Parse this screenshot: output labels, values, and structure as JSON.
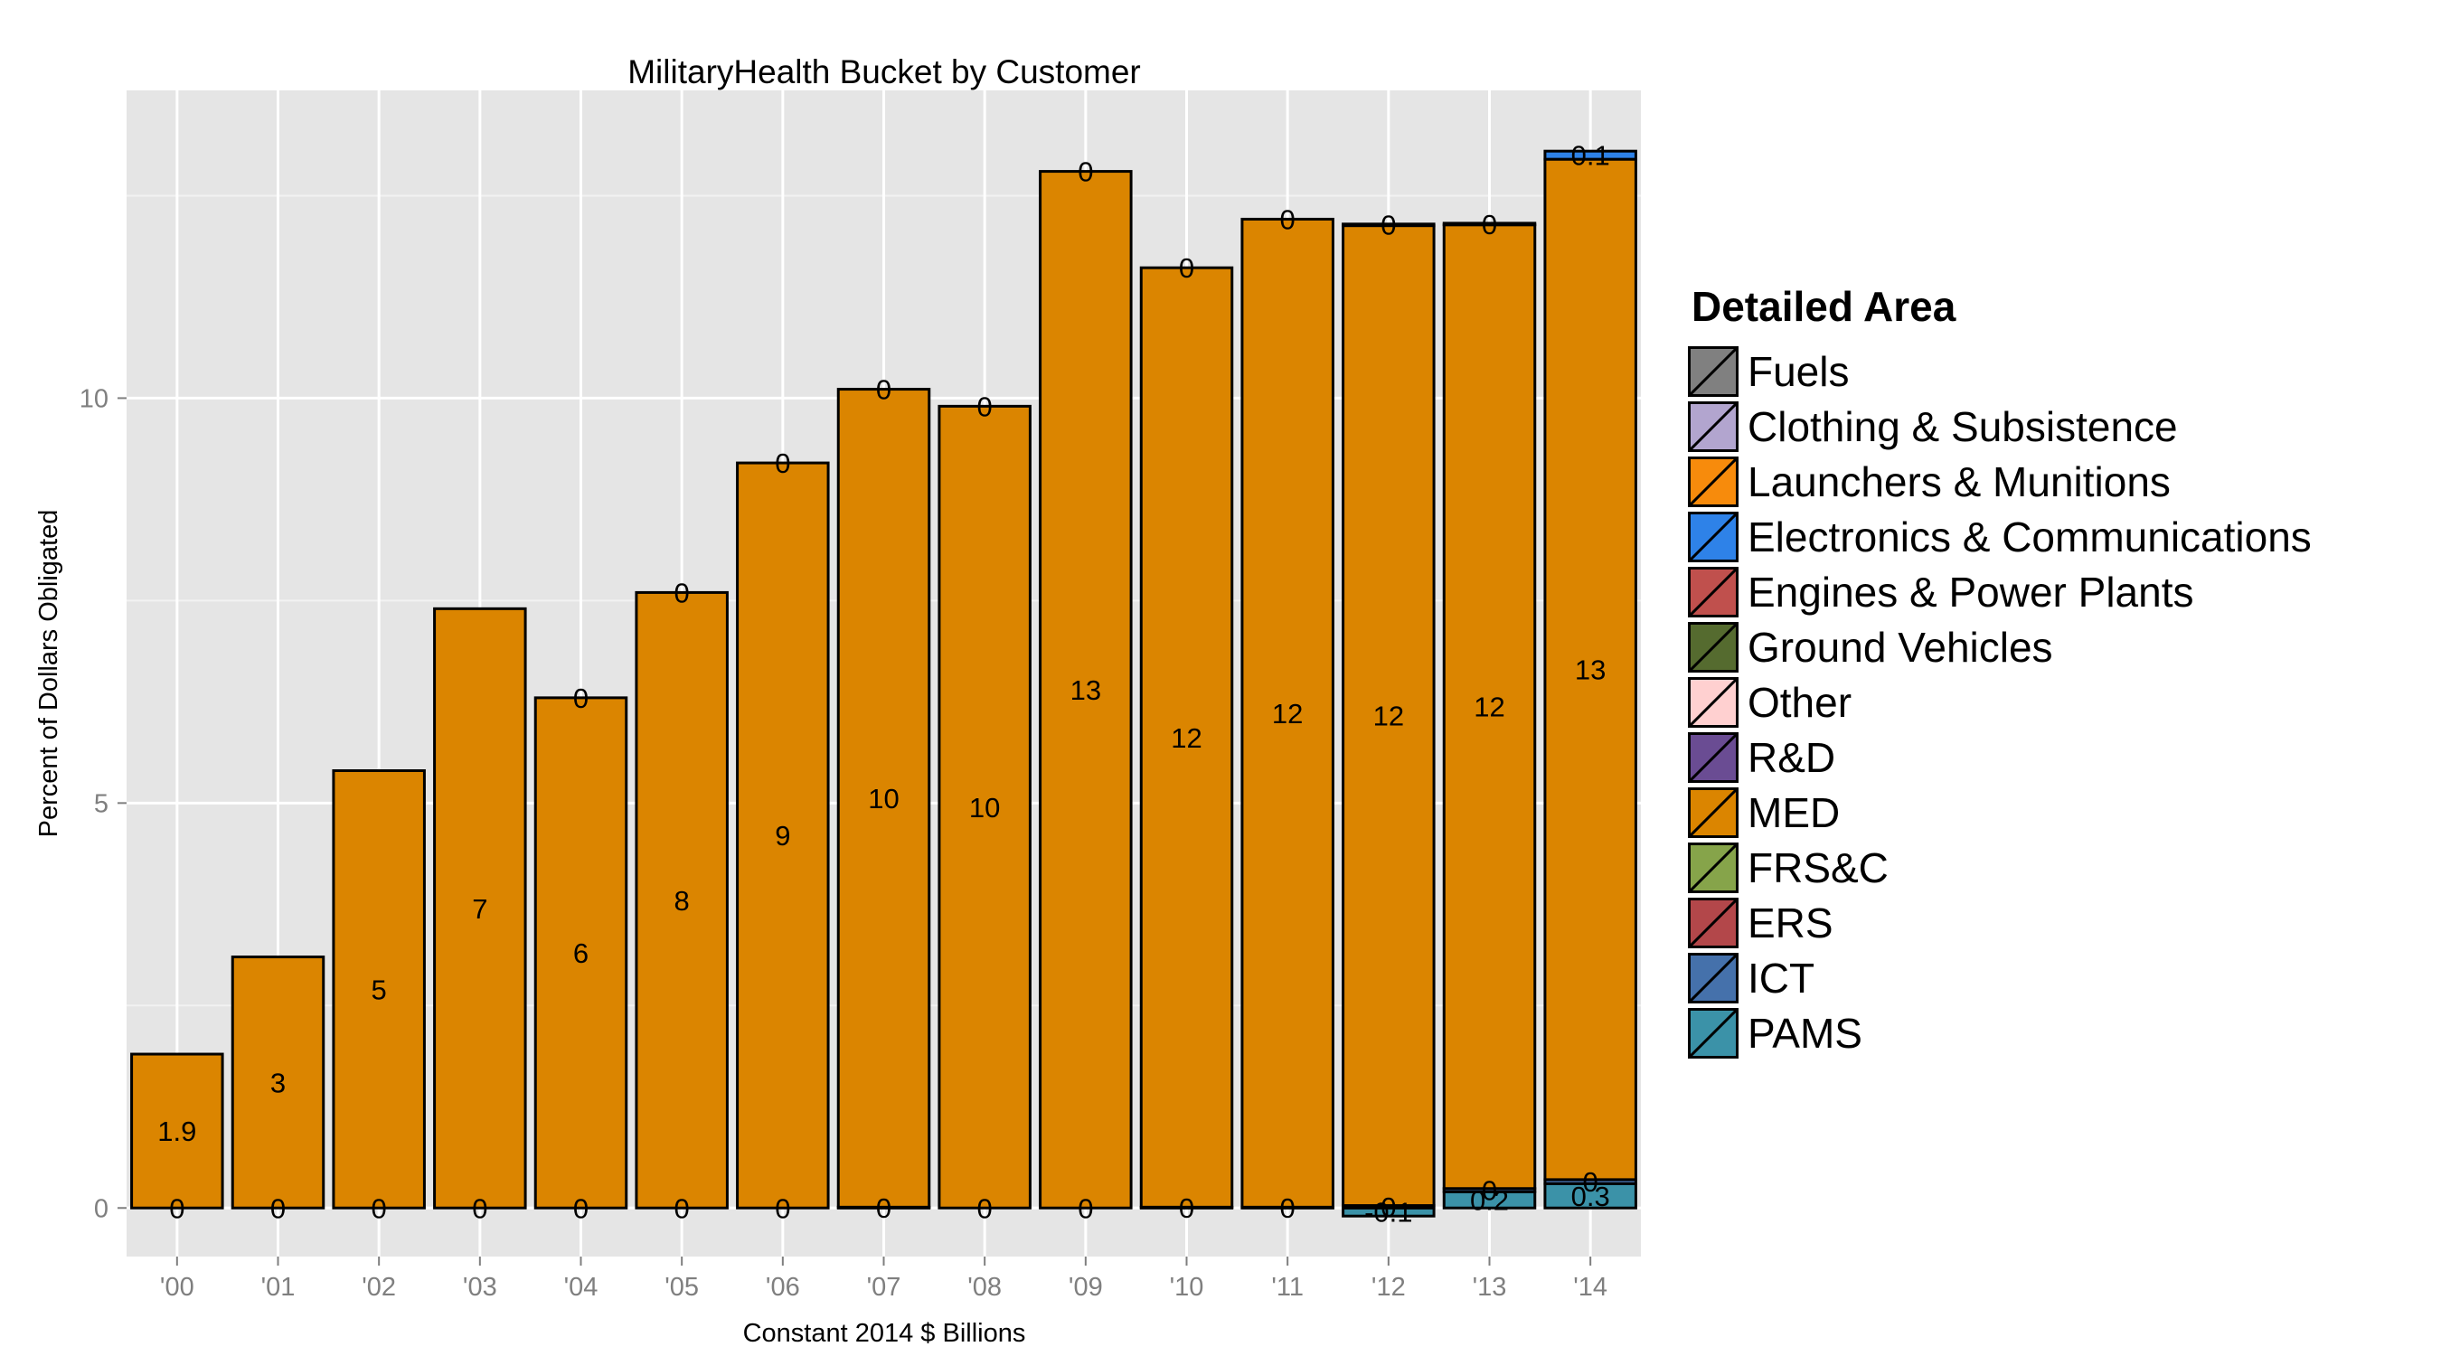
{
  "chart_data": {
    "type": "bar",
    "title": "MilitaryHealth Bucket by Customer",
    "xlabel": "Constant 2014 $ Billions",
    "ylabel": "Percent of Dollars Obligated",
    "ylim": [
      -0.6,
      13.8
    ],
    "yticks": [
      0,
      5,
      10
    ],
    "grid": true,
    "legend_position": "right",
    "categories": [
      "'00",
      "'01",
      "'02",
      "'03",
      "'04",
      "'05",
      "'06",
      "'07",
      "'08",
      "'09",
      "'10",
      "'11",
      "'12",
      "'13",
      "'14"
    ],
    "series": [
      {
        "name": "PAMS",
        "color": "#3B92A8",
        "values": [
          0,
          0,
          0,
          0,
          0,
          0,
          0,
          0.01,
          0,
          0,
          0.01,
          0.01,
          -0.1,
          0.2,
          0.3
        ],
        "labels": [
          "0",
          "0",
          "0",
          "0",
          "0",
          "0",
          "0",
          "0",
          "0",
          "0",
          "0",
          "0",
          "-0.1",
          "0.2",
          "0.3"
        ]
      },
      {
        "name": "ICT",
        "color": "#4571AB",
        "values": [
          0,
          0,
          0,
          0,
          0,
          0,
          0,
          0,
          0,
          0,
          0,
          0,
          0.03,
          0.04,
          0.05
        ],
        "labels": [
          "",
          "",
          "",
          "",
          "",
          "",
          "",
          "",
          "",
          "",
          "",
          "",
          "0",
          "0",
          "0"
        ]
      },
      {
        "name": "MED",
        "color": "#DB8500",
        "values": [
          1.9,
          3.1,
          5.4,
          7.4,
          6.3,
          7.6,
          9.2,
          10.1,
          9.9,
          12.8,
          11.6,
          12.2,
          12.1,
          11.9,
          12.6
        ],
        "labels": [
          "1.9",
          "3",
          "5",
          "7",
          "6",
          "8",
          "9",
          "10",
          "10",
          "13",
          "12",
          "12",
          "12",
          "12",
          "13"
        ]
      },
      {
        "name": "Electronics & Communications",
        "color": "#2E82E8",
        "values": [
          0,
          0,
          0,
          0,
          0,
          0,
          0,
          0,
          0,
          0,
          0,
          0,
          0.02,
          0.02,
          0.1
        ],
        "labels": [
          "",
          "",
          "",
          "",
          "0",
          "0",
          "0",
          "0",
          "0",
          "0",
          "0",
          "0",
          "0",
          "0",
          "0.1"
        ]
      }
    ],
    "legend": {
      "title": "Detailed Area",
      "items": [
        {
          "name": "Fuels",
          "color": "#808080"
        },
        {
          "name": "Clothing & Subsistence",
          "color": "#B2A5CF"
        },
        {
          "name": "Launchers & Munitions",
          "color": "#F78B0C"
        },
        {
          "name": "Electronics & Communications",
          "color": "#2E82E8"
        },
        {
          "name": "Engines & Power Plants",
          "color": "#C0504D"
        },
        {
          "name": "Ground Vehicles",
          "color": "#556B2F"
        },
        {
          "name": "Other",
          "color": "#FFD0D0"
        },
        {
          "name": "R&D",
          "color": "#6A4C93"
        },
        {
          "name": "MED",
          "color": "#DB8500"
        },
        {
          "name": "FRS&C",
          "color": "#86A44A"
        },
        {
          "name": "ERS",
          "color": "#B3474A"
        },
        {
          "name": "ICT",
          "color": "#4571AB"
        },
        {
          "name": "PAMS",
          "color": "#3B92A8"
        }
      ]
    }
  }
}
